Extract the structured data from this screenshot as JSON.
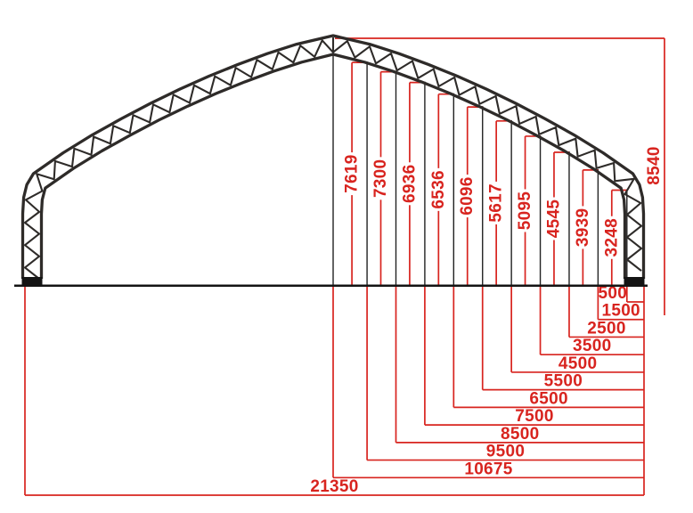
{
  "drawing": {
    "type": "engineering-dimension-elevation",
    "subject": "curved double-chord truss arch frame",
    "background_color": "#ffffff",
    "dimension_color": "#d8241f",
    "structure_color": "#2e2b29",
    "ground_color": "#141414",
    "overall": {
      "span": "21350",
      "height": "8540",
      "half_span": "10675"
    },
    "height_dims": [
      {
        "label": "8540",
        "at_width": 10675
      },
      {
        "label": "7619",
        "at_width": 9500
      },
      {
        "label": "7300",
        "at_width": 8500
      },
      {
        "label": "6936",
        "at_width": 7500
      },
      {
        "label": "6536",
        "at_width": 6500
      },
      {
        "label": "6096",
        "at_width": 5500
      },
      {
        "label": "5617",
        "at_width": 4500
      },
      {
        "label": "5095",
        "at_width": 3500
      },
      {
        "label": "4545",
        "at_width": 2500
      },
      {
        "label": "3939",
        "at_width": 1500
      },
      {
        "label": "3248",
        "at_width": 500
      }
    ],
    "width_dims": [
      "500",
      "1500",
      "2500",
      "3500",
      "4500",
      "5500",
      "6500",
      "7500",
      "8500",
      "9500",
      "10675",
      "21350"
    ]
  }
}
